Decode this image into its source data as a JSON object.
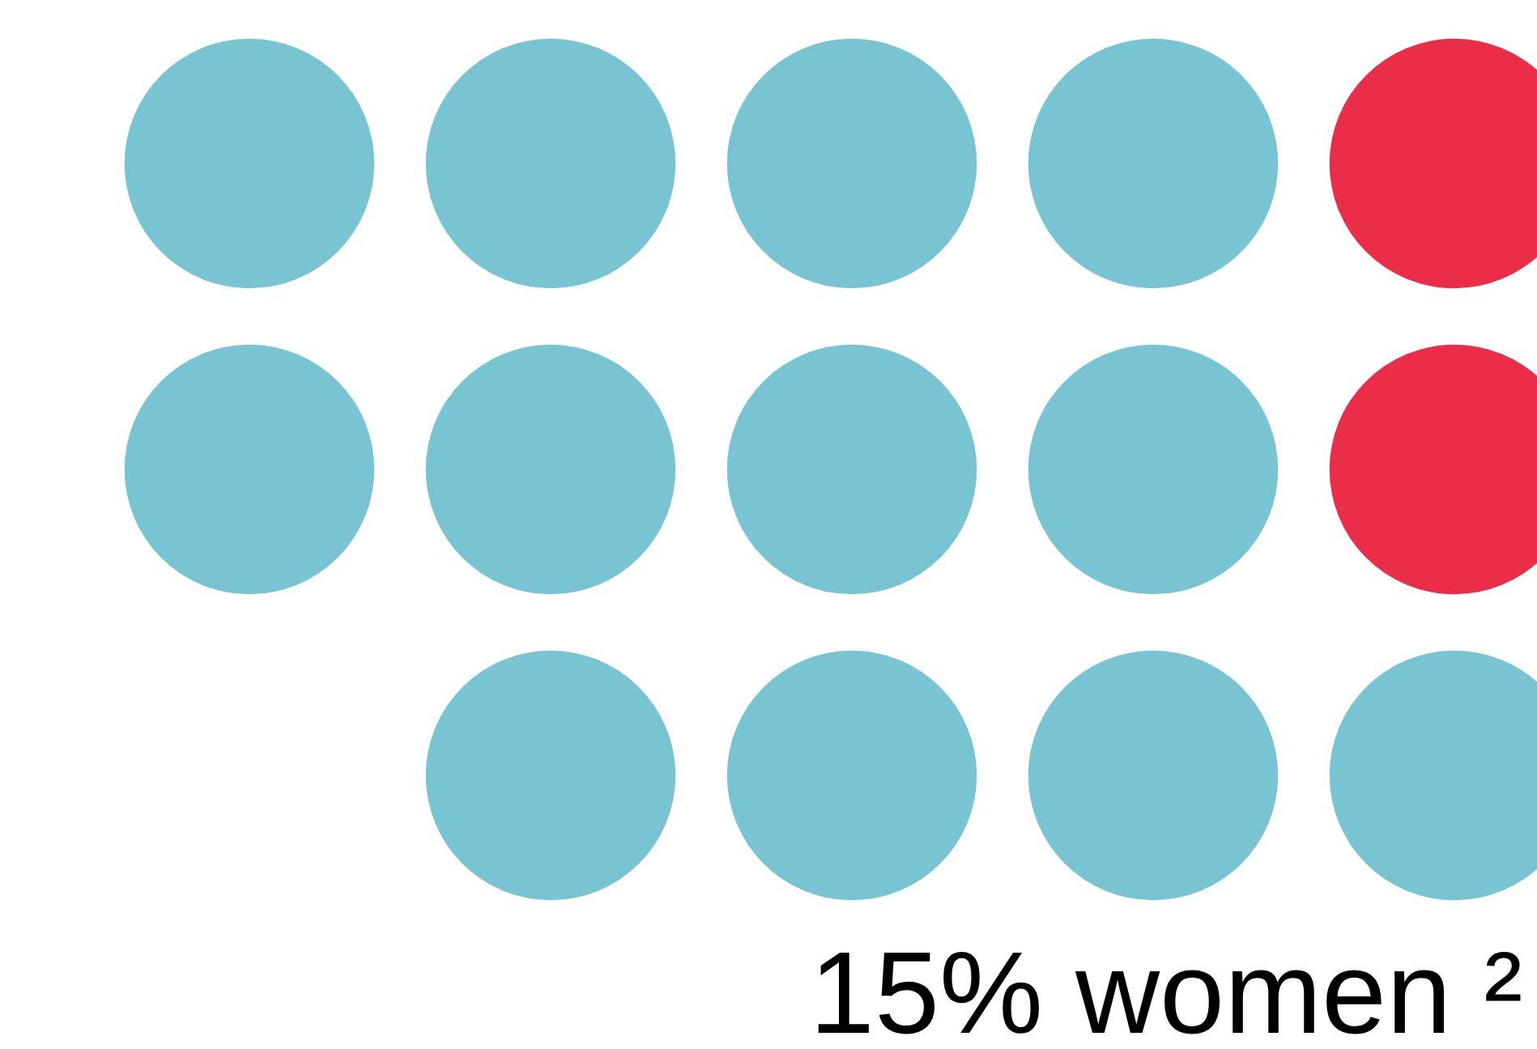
{
  "chart_data": {
    "type": "other",
    "categories": [
      "% women ²"
    ],
    "values": [
      15
    ],
    "data_labels": true
  }
}
